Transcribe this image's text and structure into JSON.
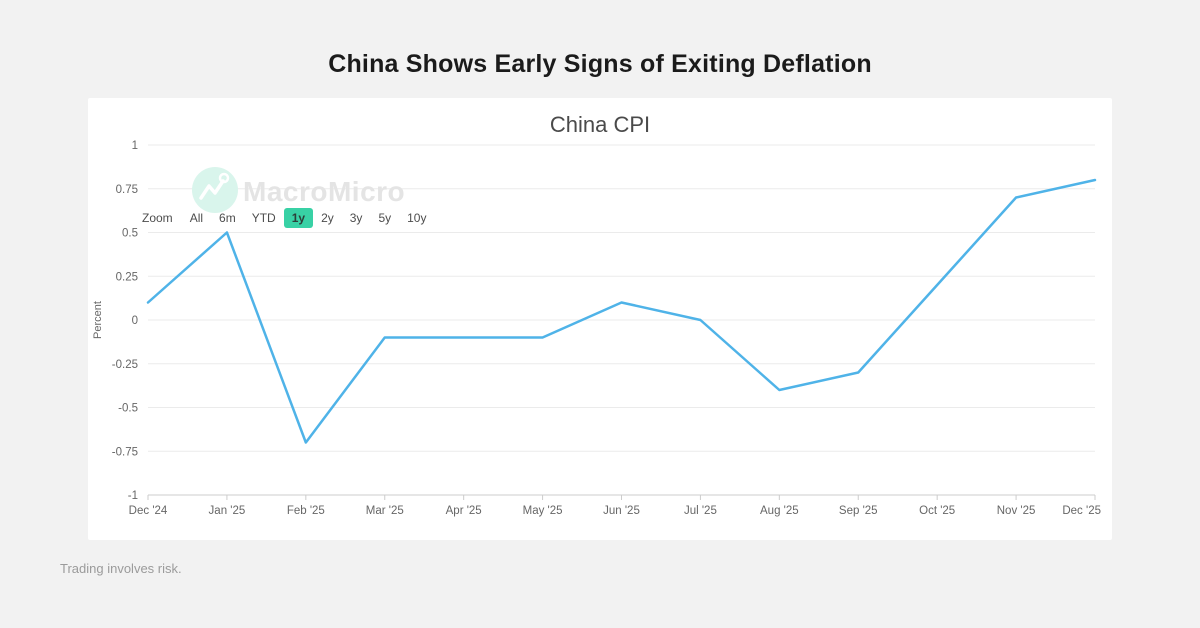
{
  "page": {
    "title": "China Shows Early Signs of Exiting Deflation",
    "footer": "Trading involves risk."
  },
  "toolbar": {
    "zoom_label": "Zoom",
    "buttons": [
      "All",
      "6m",
      "YTD",
      "1y",
      "2y",
      "3y",
      "5y",
      "10y"
    ],
    "selected": "1y"
  },
  "watermark": {
    "text": "MacroMicro",
    "icon": "macromicro-logo-icon"
  },
  "colors": {
    "line": "#4fb3e8",
    "selected_button_bg": "#38d1a5",
    "watermark_circle": "#d9f5ec",
    "watermark_text": "#e4e4e4",
    "grid": "#ebebeb",
    "axis": "#cccccc",
    "tick_text": "#666666"
  },
  "chart_data": {
    "type": "line",
    "title": "China CPI",
    "xlabel": "",
    "ylabel": "Percent",
    "categories": [
      "Dec '24",
      "Jan '25",
      "Feb '25",
      "Mar '25",
      "Apr '25",
      "May '25",
      "Jun '25",
      "Jul '25",
      "Aug '25",
      "Sep '25",
      "Oct '25",
      "Nov '25",
      "Dec '25"
    ],
    "values": [
      0.1,
      0.5,
      -0.7,
      -0.1,
      -0.1,
      -0.1,
      0.1,
      0.0,
      -0.4,
      -0.3,
      0.2,
      0.7,
      0.8
    ],
    "ylim": [
      -1,
      1
    ],
    "yticks": [
      1,
      0.75,
      0.5,
      0.25,
      0,
      -0.25,
      -0.5,
      -0.75,
      -1
    ],
    "grid": true,
    "legend": "none",
    "line_color": "#4fb3e8"
  }
}
